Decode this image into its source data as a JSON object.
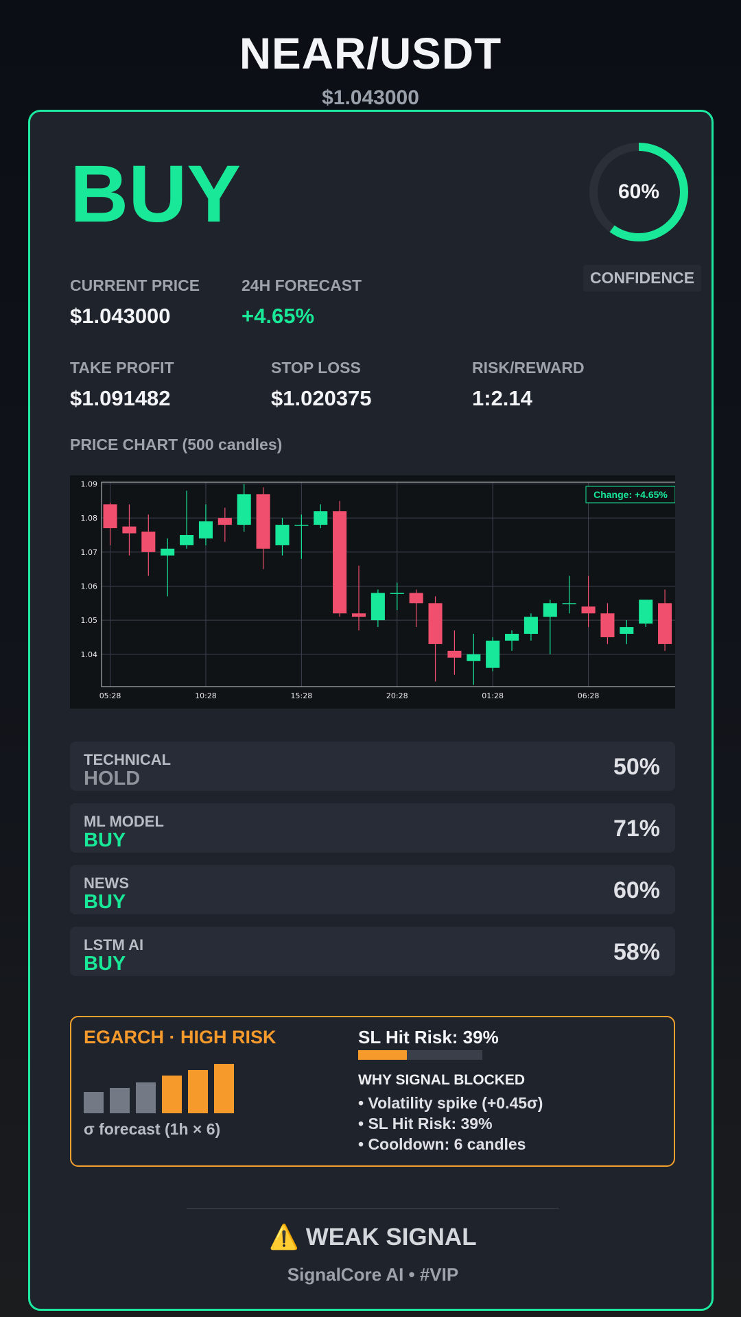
{
  "header": {
    "pair": "NEAR/USDT",
    "price": "$1.043000"
  },
  "signal": {
    "action": "BUY",
    "confidence": 60,
    "confidence_text": "60%",
    "confidence_label": "CONFIDENCE"
  },
  "metrics": {
    "current_price_label": "CURRENT PRICE",
    "current_price": "$1.043000",
    "forecast_label": "24H FORECAST",
    "forecast": "+4.65%",
    "take_profit_label": "TAKE PROFIT",
    "take_profit": "$1.091482",
    "stop_loss_label": "STOP LOSS",
    "stop_loss": "$1.020375",
    "risk_reward_label": "RISK/REWARD",
    "risk_reward": "1:2.14"
  },
  "chart_title": "PRICE CHART (500 candles)",
  "chart_data": {
    "type": "candlestick",
    "change_badge": "Change: +4.65%",
    "ylim": [
      1.0305,
      1.0905
    ],
    "y_ticks": [
      1.04,
      1.05,
      1.06,
      1.07,
      1.08,
      1.09
    ],
    "y_tick_labels": [
      "1.04",
      "1.05",
      "1.06",
      "1.07",
      "1.08",
      "1.09"
    ],
    "x_tick_labels": [
      "05:28",
      "10:28",
      "15:28",
      "20:28",
      "01:28",
      "06:28"
    ],
    "x_tick_index": [
      0,
      5,
      10,
      15,
      20,
      25
    ],
    "grid": true,
    "up_color": "#17e89a",
    "down_color": "#f0506e",
    "candles": [
      {
        "o": 1.084,
        "h": 1.0845,
        "l": 1.072,
        "c": 1.077
      },
      {
        "o": 1.0775,
        "h": 1.084,
        "l": 1.069,
        "c": 1.0755
      },
      {
        "o": 1.076,
        "h": 1.081,
        "l": 1.063,
        "c": 1.07
      },
      {
        "o": 1.069,
        "h": 1.074,
        "l": 1.057,
        "c": 1.071
      },
      {
        "o": 1.072,
        "h": 1.088,
        "l": 1.071,
        "c": 1.075
      },
      {
        "o": 1.074,
        "h": 1.084,
        "l": 1.072,
        "c": 1.079
      },
      {
        "o": 1.08,
        "h": 1.083,
        "l": 1.073,
        "c": 1.078
      },
      {
        "o": 1.078,
        "h": 1.09,
        "l": 1.076,
        "c": 1.087
      },
      {
        "o": 1.087,
        "h": 1.089,
        "l": 1.065,
        "c": 1.071
      },
      {
        "o": 1.072,
        "h": 1.08,
        "l": 1.069,
        "c": 1.078
      },
      {
        "o": 1.078,
        "h": 1.081,
        "l": 1.068,
        "c": 1.078
      },
      {
        "o": 1.078,
        "h": 1.084,
        "l": 1.077,
        "c": 1.082
      },
      {
        "o": 1.082,
        "h": 1.085,
        "l": 1.051,
        "c": 1.052
      },
      {
        "o": 1.052,
        "h": 1.066,
        "l": 1.047,
        "c": 1.051
      },
      {
        "o": 1.05,
        "h": 1.059,
        "l": 1.048,
        "c": 1.058
      },
      {
        "o": 1.058,
        "h": 1.061,
        "l": 1.053,
        "c": 1.058
      },
      {
        "o": 1.058,
        "h": 1.059,
        "l": 1.048,
        "c": 1.055
      },
      {
        "o": 1.055,
        "h": 1.057,
        "l": 1.032,
        "c": 1.043
      },
      {
        "o": 1.041,
        "h": 1.047,
        "l": 1.034,
        "c": 1.039
      },
      {
        "o": 1.038,
        "h": 1.046,
        "l": 1.031,
        "c": 1.04
      },
      {
        "o": 1.036,
        "h": 1.045,
        "l": 1.035,
        "c": 1.044
      },
      {
        "o": 1.044,
        "h": 1.047,
        "l": 1.041,
        "c": 1.046
      },
      {
        "o": 1.046,
        "h": 1.052,
        "l": 1.044,
        "c": 1.051
      },
      {
        "o": 1.051,
        "h": 1.056,
        "l": 1.04,
        "c": 1.055
      },
      {
        "o": 1.055,
        "h": 1.063,
        "l": 1.052,
        "c": 1.055
      },
      {
        "o": 1.054,
        "h": 1.063,
        "l": 1.048,
        "c": 1.052
      },
      {
        "o": 1.052,
        "h": 1.055,
        "l": 1.043,
        "c": 1.045
      },
      {
        "o": 1.046,
        "h": 1.05,
        "l": 1.043,
        "c": 1.048
      },
      {
        "o": 1.049,
        "h": 1.056,
        "l": 1.048,
        "c": 1.056
      },
      {
        "o": 1.055,
        "h": 1.059,
        "l": 1.041,
        "c": 1.043
      }
    ]
  },
  "sources": [
    {
      "name": "TECHNICAL",
      "signal": "HOLD",
      "percent": "50%",
      "kind": "hold"
    },
    {
      "name": "ML MODEL",
      "signal": "BUY",
      "percent": "71%",
      "kind": "buy"
    },
    {
      "name": "NEWS",
      "signal": "BUY",
      "percent": "60%",
      "kind": "buy"
    },
    {
      "name": "LSTM AI",
      "signal": "BUY",
      "percent": "58%",
      "kind": "buy"
    }
  ],
  "risk": {
    "title": "EGARCH · HIGH RISK",
    "sigma_label": "σ forecast (1h × 6)",
    "sigma_bars": [
      0.53,
      0.65,
      0.78,
      0.95,
      1.1,
      1.25
    ],
    "sigma_colors": [
      "#737985",
      "#737985",
      "#737985",
      "#f69a2c",
      "#f69a2c",
      "#f69a2c"
    ],
    "sl_hit_title": "SL Hit Risk: 39%",
    "sl_hit_value": 0.39,
    "why_title": "WHY SIGNAL BLOCKED",
    "reasons": [
      "• Volatility spike (+0.45σ)",
      "• SL Hit Risk: 39%",
      "• Cooldown: 6 candles"
    ]
  },
  "footer": {
    "status": "⚠️ WEAK SIGNAL",
    "brand": "SignalCore AI • #VIP"
  }
}
